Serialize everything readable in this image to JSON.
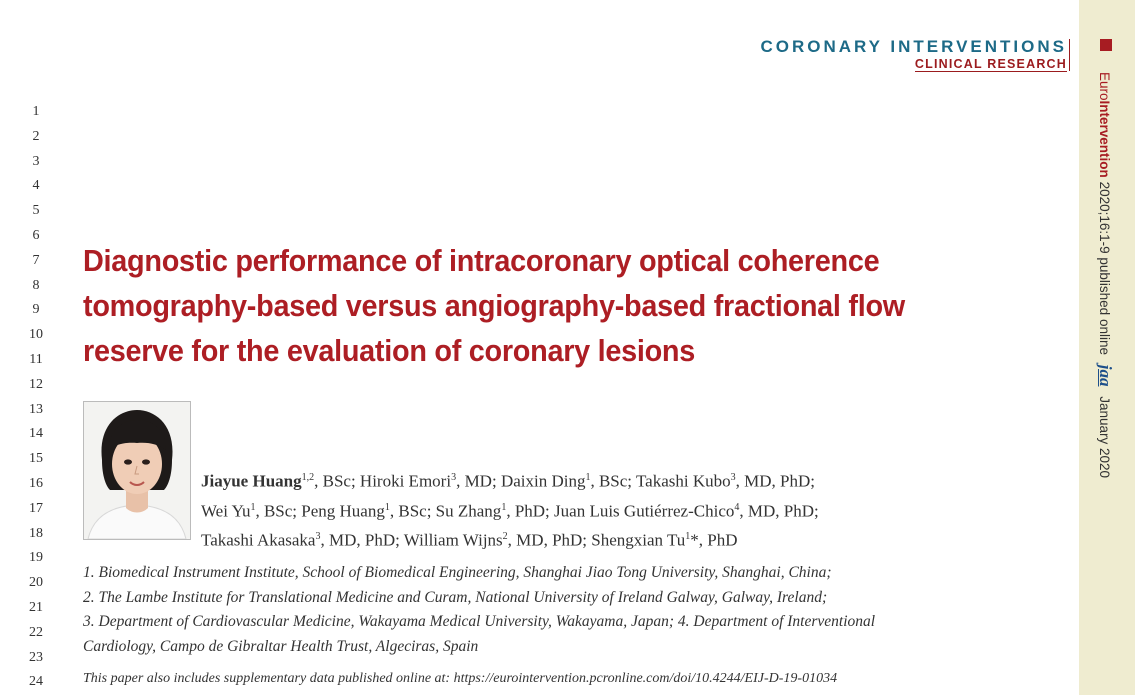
{
  "section": {
    "title": "CORONARY INTERVENTIONS",
    "subtitle": "CLINICAL RESEARCH"
  },
  "sidebar": {
    "journal_part1": "Euro",
    "journal_part2": "Intervention",
    "citation": "2020;16:1-9",
    "published": "published online",
    "badge": "jaa",
    "date": "January 2020",
    "accent_color": "#a71c22",
    "band_color": "#efecd0"
  },
  "line_numbers": [
    "1",
    "2",
    "3",
    "4",
    "5",
    "6",
    "7",
    "8",
    "9",
    "10",
    "11",
    "12",
    "13",
    "14",
    "15",
    "16",
    "17",
    "18",
    "19",
    "20",
    "21",
    "22",
    "23",
    "24"
  ],
  "title": {
    "line1": "Diagnostic performance of intracoronary optical coherence",
    "line2": "tomography-based versus angiography-based fractional flow",
    "line3": "reserve for the evaluation of coronary lesions",
    "color": "#ad1e24"
  },
  "authors": [
    {
      "name": "Jiayue Huang",
      "sup": "1,2",
      "degree": ", BSc; "
    },
    {
      "name": "Hiroki Emori",
      "sup": "3",
      "degree": ", MD; "
    },
    {
      "name": "Daixin Ding",
      "sup": "1",
      "degree": ", BSc; "
    },
    {
      "name": "Takashi Kubo",
      "sup": "3",
      "degree": ", MD, PhD;"
    },
    {
      "name": "Wei Yu",
      "sup": "1",
      "degree": ", BSc; "
    },
    {
      "name": "Peng Huang",
      "sup": "1",
      "degree": ", BSc; "
    },
    {
      "name": "Su Zhang",
      "sup": "1",
      "degree": ", PhD; "
    },
    {
      "name": "Juan Luis Gutiérrez-Chico",
      "sup": "4",
      "degree": ", MD, PhD;"
    },
    {
      "name": "Takashi Akasaka",
      "sup": "3",
      "degree": ", MD, PhD; "
    },
    {
      "name": "William Wijns",
      "sup": "2",
      "degree": ", MD, PhD; "
    },
    {
      "name": "Shengxian Tu",
      "sup": "1",
      "degree": "*, PhD"
    }
  ],
  "affiliations": {
    "a1": "1. Biomedical Instrument Institute, School of Biomedical Engineering, Shanghai Jiao Tong University, Shanghai, China;",
    "a2": "2. The Lambe Institute for Translational Medicine and Curam, National University of Ireland Galway, Galway, Ireland;",
    "a3": "3. Department of Cardiovascular Medicine, Wakayama Medical University, Wakayama, Japan; 4. Department of Interventional",
    "a4": "Cardiology, Campo de Gibraltar Health Trust, Algeciras, Spain"
  },
  "supplementary": "This paper also includes supplementary data published online at: https://eurointervention.pcronline.com/doi/10.4244/EIJ-D-19-01034"
}
